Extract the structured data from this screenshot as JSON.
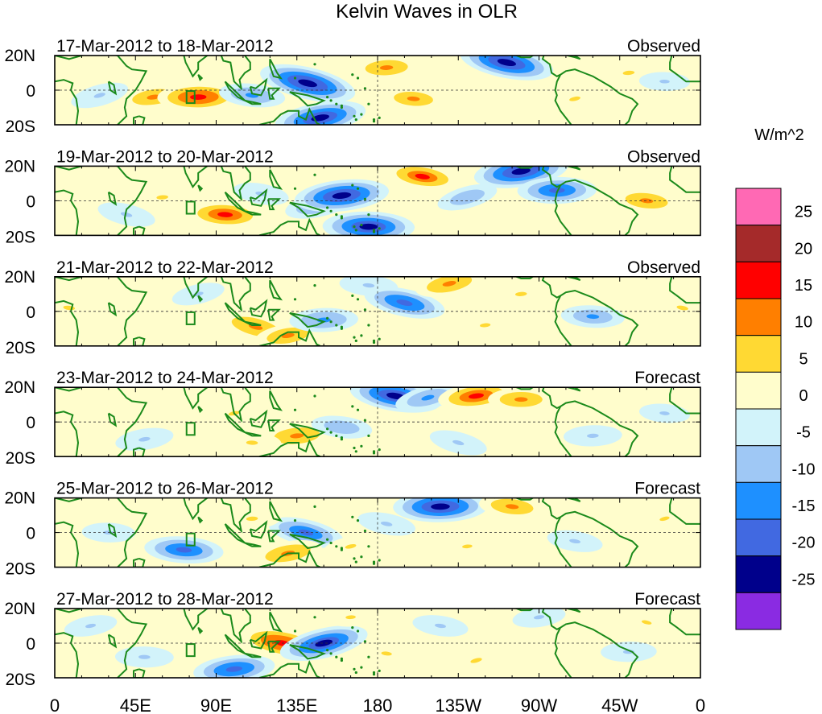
{
  "chart_data": {
    "type": "heatmap",
    "title": "Kelvin Waves in OLR",
    "units": "W/m^2",
    "x_ticks": [
      "0",
      "45E",
      "90E",
      "135E",
      "180",
      "135W",
      "90W",
      "45W",
      "0"
    ],
    "y_ticks": [
      "20N",
      "0",
      "20S"
    ],
    "ylim": [
      -20,
      20
    ],
    "xlim": [
      0,
      360
    ],
    "colorbar": {
      "levels": [
        -30,
        -25,
        -20,
        -15,
        -10,
        -5,
        0,
        5,
        10,
        15,
        20,
        25,
        30
      ],
      "tick_labels": [
        "-25",
        "-20",
        "-15",
        "-10",
        "-5",
        "0",
        "5",
        "10",
        "15",
        "20",
        "25"
      ],
      "colors": [
        "#8a2be2",
        "#00008b",
        "#4169e1",
        "#1e90ff",
        "#9fc8f5",
        "#d2f3fa",
        "#fffdcc",
        "#ffd933",
        "#ff7f00",
        "#ff0000",
        "#a52a2a",
        "#ff69b4"
      ]
    },
    "panels": [
      {
        "date_range": "17-Mar-2012 to 18-Mar-2012",
        "status": "Observed",
        "anomalies": [
          {
            "lon": 25,
            "lat": -3,
            "value": -9
          },
          {
            "lon": 55,
            "lat": -4,
            "value": 12
          },
          {
            "lon": 80,
            "lat": -4,
            "value": 18
          },
          {
            "lon": 110,
            "lat": -3,
            "value": -12
          },
          {
            "lon": 141,
            "lat": 4,
            "value": -24
          },
          {
            "lon": 148,
            "lat": -16,
            "value": -22
          },
          {
            "lon": 185,
            "lat": 13,
            "value": 12
          },
          {
            "lon": 200,
            "lat": -5,
            "value": 11
          },
          {
            "lon": 252,
            "lat": 16,
            "value": -23
          },
          {
            "lon": 290,
            "lat": -5,
            "value": 8
          },
          {
            "lon": 320,
            "lat": 10,
            "value": 9
          },
          {
            "lon": 340,
            "lat": 5,
            "value": -6
          }
        ]
      },
      {
        "date_range": "19-Mar-2012 to 20-Mar-2012",
        "status": "Observed",
        "anomalies": [
          {
            "lon": 60,
            "lat": 2,
            "value": 9
          },
          {
            "lon": 95,
            "lat": -8,
            "value": 16
          },
          {
            "lon": 115,
            "lat": 4,
            "value": -8
          },
          {
            "lon": 148,
            "lat": -2,
            "value": -14
          },
          {
            "lon": 160,
            "lat": 3,
            "value": -23
          },
          {
            "lon": 175,
            "lat": -15,
            "value": -22
          },
          {
            "lon": 205,
            "lat": 14,
            "value": 15
          },
          {
            "lon": 230,
            "lat": 2,
            "value": -10
          },
          {
            "lon": 260,
            "lat": 17,
            "value": -23
          },
          {
            "lon": 280,
            "lat": 6,
            "value": -17
          },
          {
            "lon": 330,
            "lat": 0,
            "value": 12
          },
          {
            "lon": 40,
            "lat": -8,
            "value": -9
          }
        ]
      },
      {
        "date_range": "21-Mar-2012 to 22-Mar-2012",
        "status": "Observed",
        "anomalies": [
          {
            "lon": 8,
            "lat": 2,
            "value": 9
          },
          {
            "lon": 112,
            "lat": -9,
            "value": 14
          },
          {
            "lon": 130,
            "lat": -14,
            "value": 12
          },
          {
            "lon": 150,
            "lat": -5,
            "value": -13
          },
          {
            "lon": 175,
            "lat": 15,
            "value": -9
          },
          {
            "lon": 195,
            "lat": 5,
            "value": -18
          },
          {
            "lon": 220,
            "lat": 16,
            "value": 13
          },
          {
            "lon": 260,
            "lat": 10,
            "value": 9
          },
          {
            "lon": 300,
            "lat": -3,
            "value": -11
          },
          {
            "lon": 350,
            "lat": 2,
            "value": 9
          },
          {
            "lon": 80,
            "lat": 10,
            "value": -7
          },
          {
            "lon": 240,
            "lat": -8,
            "value": 7
          }
        ]
      },
      {
        "date_range": "23-Mar-2012 to 24-Mar-2012",
        "status": "Forecast",
        "anomalies": [
          {
            "lon": 100,
            "lat": 5,
            "value": 8
          },
          {
            "lon": 135,
            "lat": -8,
            "value": 13
          },
          {
            "lon": 110,
            "lat": -12,
            "value": 9
          },
          {
            "lon": 190,
            "lat": 15,
            "value": -22
          },
          {
            "lon": 208,
            "lat": 14,
            "value": -12
          },
          {
            "lon": 235,
            "lat": 15,
            "value": 16
          },
          {
            "lon": 260,
            "lat": 13,
            "value": 12
          },
          {
            "lon": 160,
            "lat": -3,
            "value": -10
          },
          {
            "lon": 225,
            "lat": -12,
            "value": -9
          },
          {
            "lon": 50,
            "lat": -10,
            "value": -9
          },
          {
            "lon": 300,
            "lat": -8,
            "value": -9
          },
          {
            "lon": 340,
            "lat": 5,
            "value": -6
          }
        ]
      },
      {
        "date_range": "25-Mar-2012 to 26-Mar-2012",
        "status": "Forecast",
        "anomalies": [
          {
            "lon": 215,
            "lat": 15,
            "value": -23
          },
          {
            "lon": 255,
            "lat": 15,
            "value": 12
          },
          {
            "lon": 140,
            "lat": 0,
            "value": -16
          },
          {
            "lon": 130,
            "lat": -12,
            "value": 13
          },
          {
            "lon": 110,
            "lat": 8,
            "value": 9
          },
          {
            "lon": 72,
            "lat": -10,
            "value": -17
          },
          {
            "lon": 185,
            "lat": 5,
            "value": -9
          },
          {
            "lon": 165,
            "lat": -8,
            "value": 8
          },
          {
            "lon": 230,
            "lat": -8,
            "value": 6
          },
          {
            "lon": 30,
            "lat": 0,
            "value": -7
          },
          {
            "lon": 290,
            "lat": -5,
            "value": -8
          },
          {
            "lon": 340,
            "lat": 8,
            "value": 6
          }
        ]
      },
      {
        "date_range": "27-Mar-2012 to 28-Mar-2012",
        "status": "Forecast",
        "anomalies": [
          {
            "lon": 127,
            "lat": 0,
            "value": 19
          },
          {
            "lon": 150,
            "lat": 0,
            "value": -21
          },
          {
            "lon": 100,
            "lat": -15,
            "value": -18
          },
          {
            "lon": 50,
            "lat": -8,
            "value": -9
          },
          {
            "lon": 215,
            "lat": 10,
            "value": -8
          },
          {
            "lon": 235,
            "lat": -10,
            "value": 9
          },
          {
            "lon": 270,
            "lat": 15,
            "value": -7
          },
          {
            "lon": 320,
            "lat": -5,
            "value": -8
          },
          {
            "lon": 185,
            "lat": -6,
            "value": 7
          },
          {
            "lon": 330,
            "lat": 12,
            "value": 6
          },
          {
            "lon": 20,
            "lat": 10,
            "value": -7
          },
          {
            "lon": 165,
            "lat": 15,
            "value": 6
          }
        ]
      }
    ]
  }
}
